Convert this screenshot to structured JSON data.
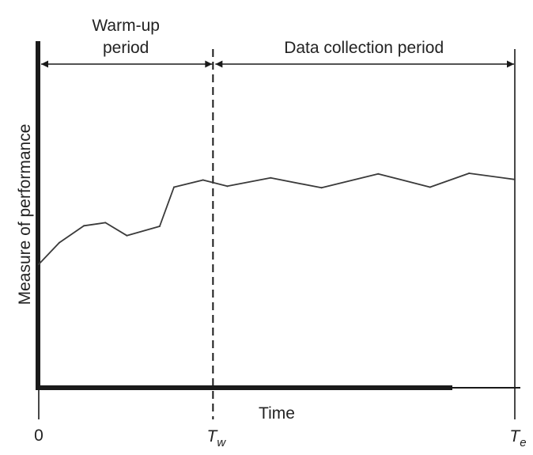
{
  "chart_data": {
    "type": "line",
    "title": "",
    "xlabel": "Time",
    "ylabel": "Measure of performance",
    "xlim": [
      0,
      100
    ],
    "ylim": [
      0,
      100
    ],
    "grid": false,
    "x_ticks": [
      {
        "value": 0,
        "label": "0"
      },
      {
        "value": 36.6,
        "label": "T",
        "sub": "w"
      },
      {
        "value": 100,
        "label": "T",
        "sub": "e"
      }
    ],
    "periods": [
      {
        "label_lines": [
          "Warm-up",
          "period"
        ],
        "from": 0,
        "to": 36.6
      },
      {
        "label_lines": [
          "Data collection period"
        ],
        "from": 36.6,
        "to": 100
      }
    ],
    "series": [
      {
        "x": [
          0,
          4.3,
          9.5,
          14,
          18.5,
          25.4,
          28.4,
          34.5,
          39.6,
          48.7,
          59.4,
          71.3,
          82.2,
          90.4,
          100
        ],
        "y": [
          40,
          47,
          52.5,
          53.5,
          49.3,
          52.3,
          65,
          67.3,
          65.3,
          68,
          64.8,
          69.3,
          65,
          69.5,
          67.5
        ]
      }
    ]
  },
  "colors": {
    "line": "#3a3a3a",
    "axis": "#1a1a1a",
    "text": "#222222"
  }
}
